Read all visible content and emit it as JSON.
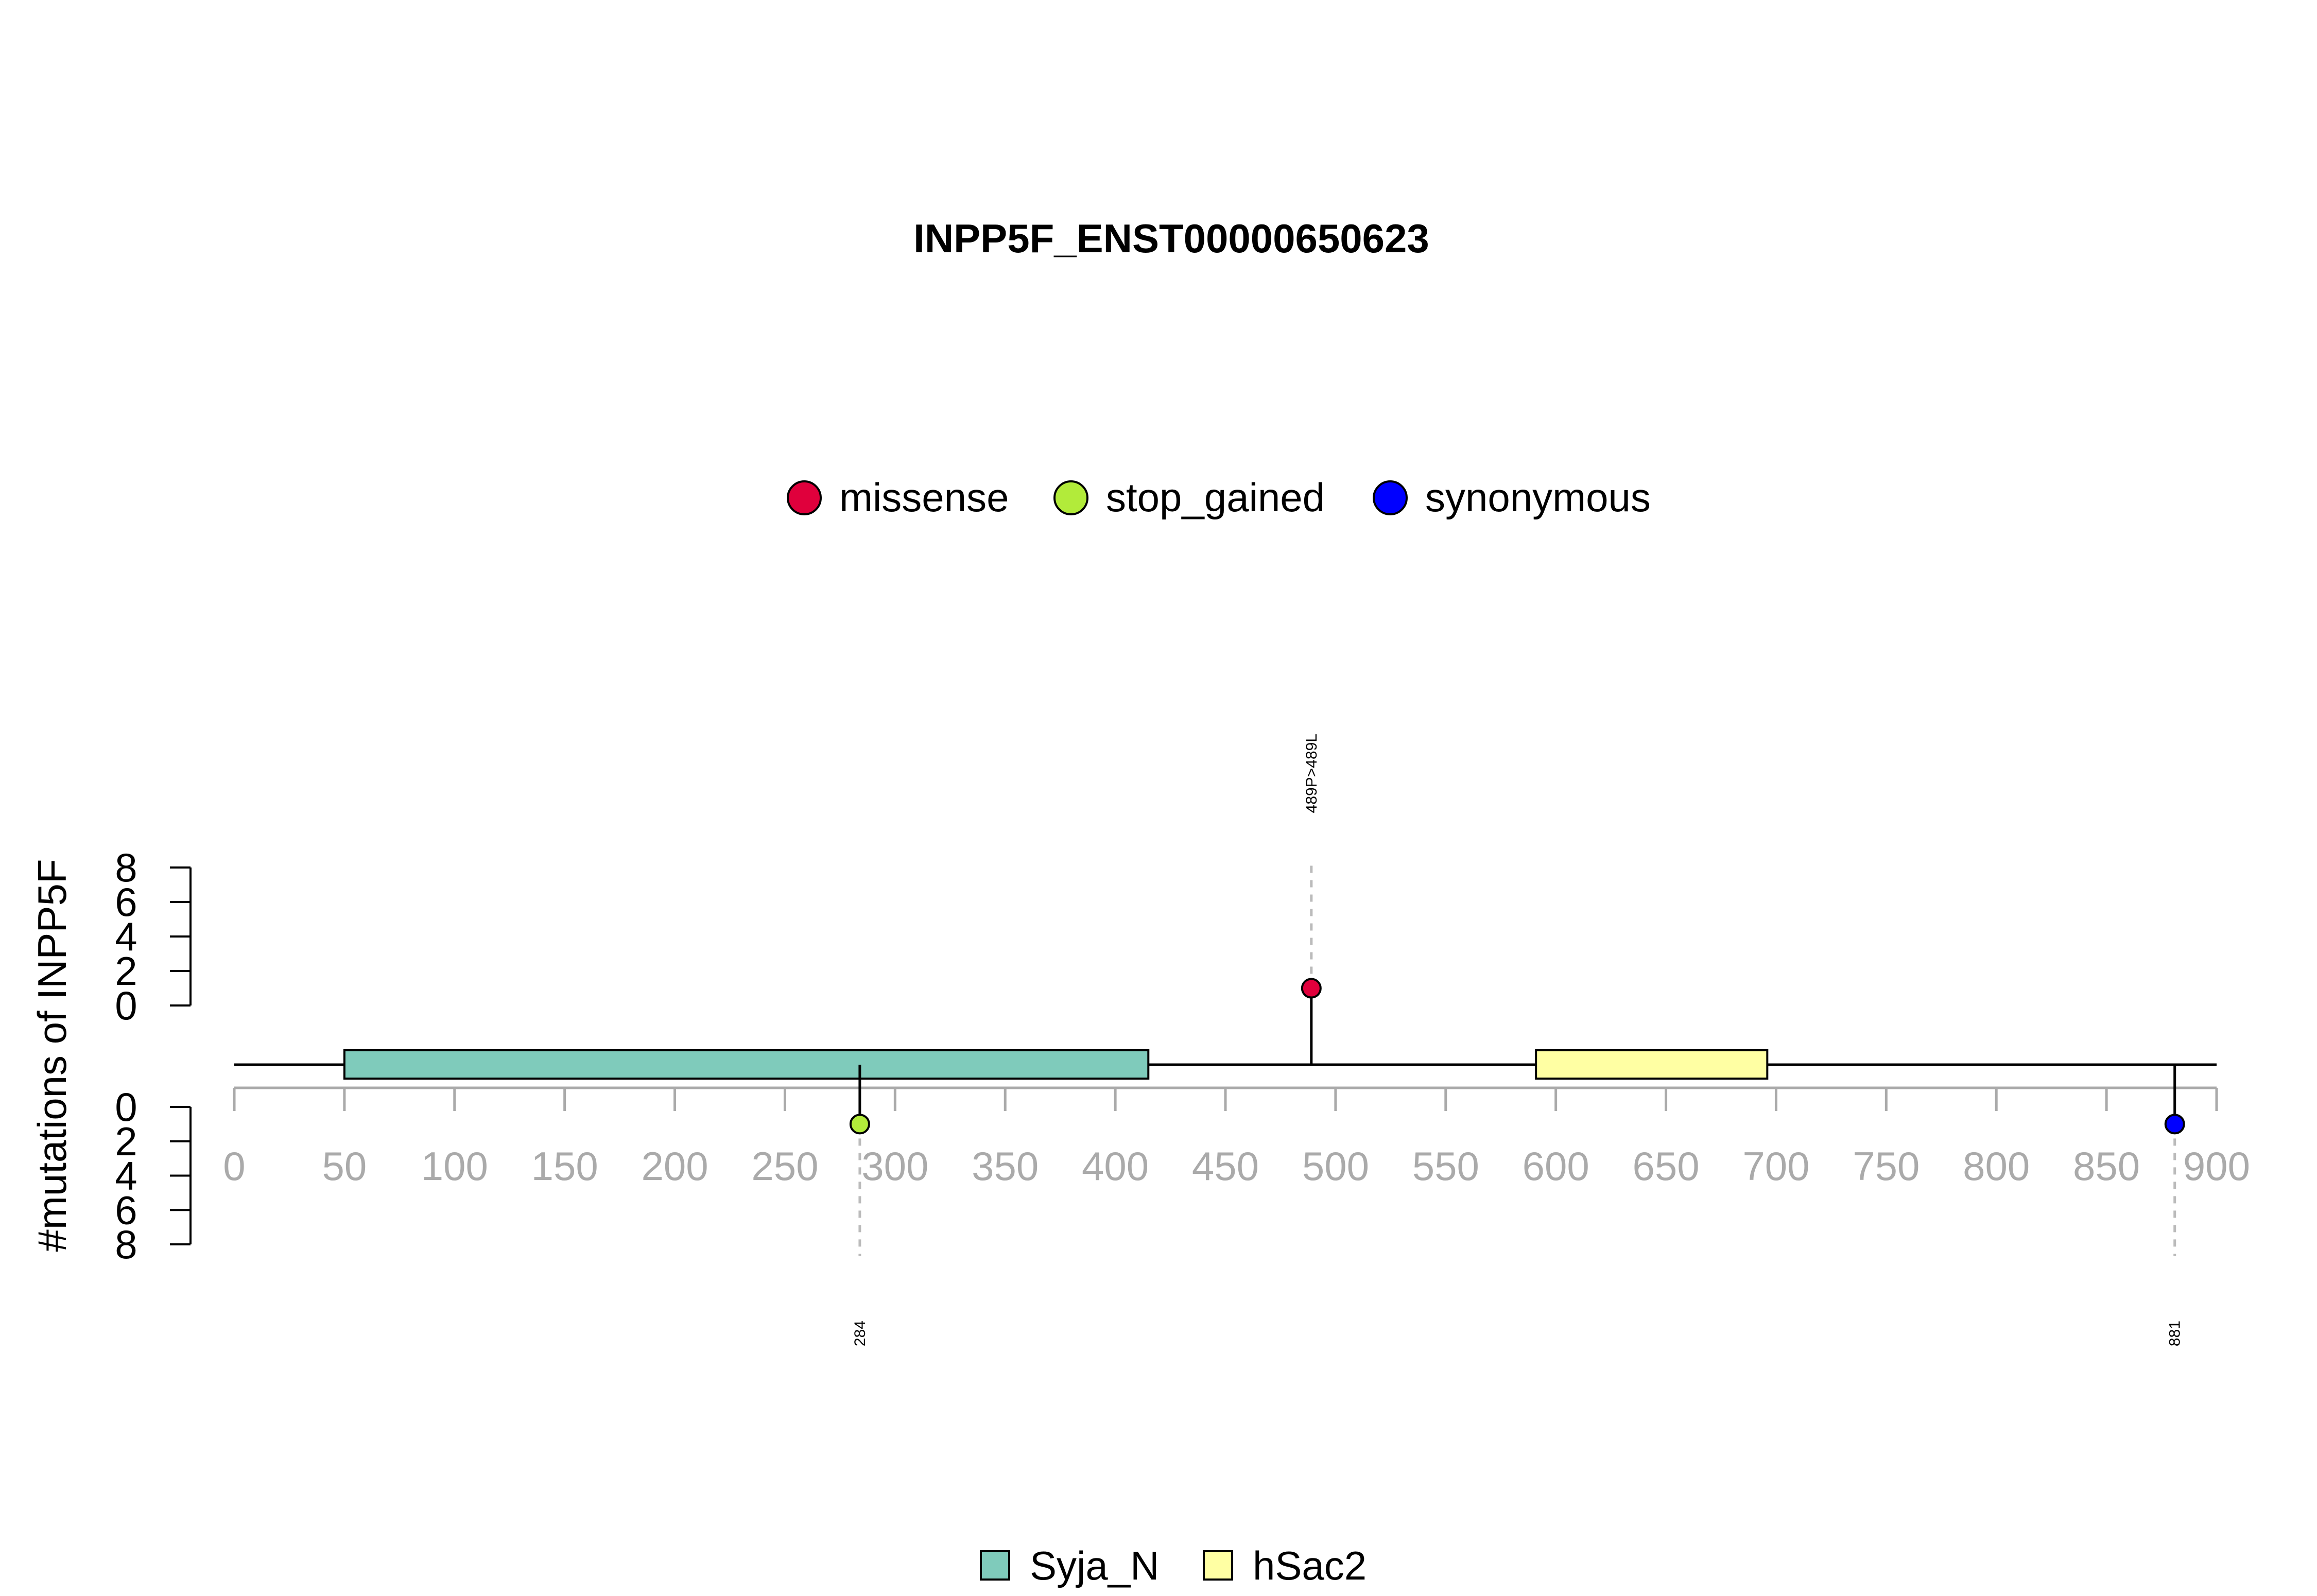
{
  "chart_data": {
    "type": "lollipop",
    "title": "INPP5F_ENST00000650623",
    "ylabel": "#mutations of INPP5F",
    "xlim": [
      0,
      900
    ],
    "x_ticks": [
      0,
      50,
      100,
      150,
      200,
      250,
      300,
      350,
      400,
      450,
      500,
      550,
      600,
      650,
      700,
      750,
      800,
      850,
      900
    ],
    "y_ticks": [
      0,
      2,
      4,
      6,
      8
    ],
    "ylim": [
      0,
      8
    ],
    "protein_length": 900,
    "mutation_legend": [
      {
        "label": "missense",
        "color": "#E0003C"
      },
      {
        "label": "stop_gained",
        "color": "#B2EB3A"
      },
      {
        "label": "synonymous",
        "color": "#0000FF"
      }
    ],
    "domain_legend": [
      {
        "label": "Syja_N",
        "color": "#7FCBBB"
      },
      {
        "label": "hSac2",
        "color": "#FFFFA3"
      }
    ],
    "domains": [
      {
        "name": "Syja_N",
        "start": 50,
        "end": 415,
        "color": "#7FCBBB"
      },
      {
        "name": "hSac2",
        "start": 591,
        "end": 696,
        "color": "#FFFFA3"
      }
    ],
    "mutations": [
      {
        "position": 489,
        "count": 1,
        "type": "missense",
        "side": "top",
        "label": "489P>489L",
        "color": "#E0003C"
      },
      {
        "position": 284,
        "count": 1,
        "type": "stop_gained",
        "side": "bottom",
        "label": "284",
        "color": "#B2EB3A"
      },
      {
        "position": 881,
        "count": 1,
        "type": "synonymous",
        "side": "bottom",
        "label": "881",
        "color": "#0000FF"
      }
    ]
  }
}
